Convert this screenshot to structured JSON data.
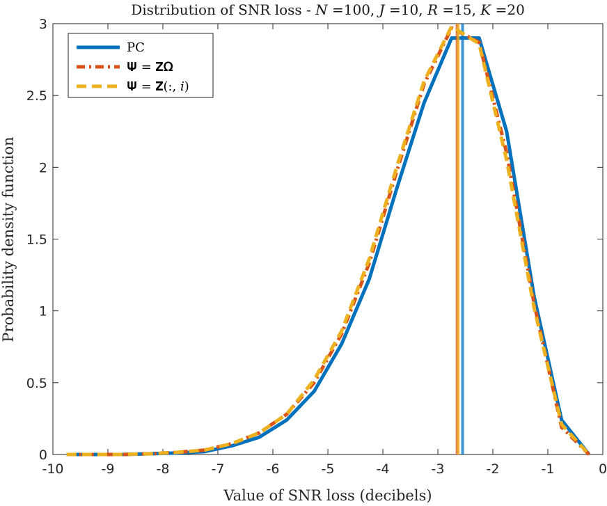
{
  "chart_data": {
    "type": "line",
    "title": "Distribution of SNR loss - 𝑁 =100, 𝐽 =10, 𝑅 =15, 𝐾 =20",
    "xlabel": "Value of SNR loss (decibels)",
    "ylabel": "Probability density function",
    "xlim": [
      -10,
      0
    ],
    "ylim": [
      0,
      3
    ],
    "xticks": [
      -10,
      -9,
      -8,
      -7,
      -6,
      -5,
      -4,
      -3,
      -2,
      -1,
      0
    ],
    "yticks": [
      0,
      0.5,
      1,
      1.5,
      2,
      2.5,
      3
    ],
    "xtick_labels": [
      "-10",
      "-9",
      "-8",
      "-7",
      "-6",
      "-5",
      "-4",
      "-3",
      "-2",
      "-1",
      "0"
    ],
    "ytick_labels": [
      "0",
      "0.5",
      "1",
      "1.5",
      "2",
      "2.5",
      "3"
    ],
    "grid": false,
    "legend_position": "top-left",
    "series": [
      {
        "name": "PC",
        "legend_label": "PC",
        "color": "#0072BD",
        "style": "solid",
        "x": [
          -9.75,
          -9.25,
          -8.75,
          -8.25,
          -7.75,
          -7.25,
          -6.75,
          -6.25,
          -5.75,
          -5.25,
          -4.75,
          -4.25,
          -3.75,
          -3.25,
          -2.75,
          -2.25,
          -1.75,
          -1.25,
          -0.75,
          -0.25
        ],
        "y": [
          0.0,
          0.0,
          0.0,
          0.005,
          0.01,
          0.02,
          0.06,
          0.12,
          0.24,
          0.44,
          0.77,
          1.22,
          1.85,
          2.45,
          2.9,
          2.9,
          2.25,
          1.1,
          0.24,
          0.0
        ],
        "vline_x": -2.55
      },
      {
        "name": "Psi = Z Omega",
        "legend_label": "𝚿 = 𝐙𝛀",
        "color": "#D95319",
        "style": "dashdot",
        "x": [
          -9.75,
          -9.25,
          -8.75,
          -8.25,
          -7.75,
          -7.25,
          -6.75,
          -6.25,
          -5.75,
          -5.25,
          -4.75,
          -4.25,
          -3.75,
          -3.25,
          -2.75,
          -2.25,
          -1.75,
          -1.25,
          -0.75,
          -0.25
        ],
        "y": [
          0.0,
          0.0,
          0.0,
          0.005,
          0.015,
          0.03,
          0.075,
          0.15,
          0.28,
          0.5,
          0.84,
          1.33,
          1.97,
          2.58,
          2.97,
          2.87,
          2.1,
          1.05,
          0.19,
          0.0
        ],
        "vline_x": -2.65
      },
      {
        "name": "Psi = Z(:, i)",
        "legend_label": "𝚿 = 𝐙(:, 𝑖)",
        "color": "#EDB120",
        "style": "dashed",
        "x": [
          -9.75,
          -9.25,
          -8.75,
          -8.25,
          -7.75,
          -7.25,
          -6.75,
          -6.25,
          -5.75,
          -5.25,
          -4.75,
          -4.25,
          -3.75,
          -3.25,
          -2.75,
          -2.25,
          -1.75,
          -1.25,
          -0.75,
          -0.25
        ],
        "y": [
          0.0,
          0.0,
          0.0,
          0.005,
          0.015,
          0.03,
          0.075,
          0.15,
          0.28,
          0.52,
          0.86,
          1.36,
          2.0,
          2.6,
          2.98,
          2.86,
          2.05,
          1.02,
          0.21,
          0.0
        ],
        "vline_x": -2.63
      }
    ]
  }
}
